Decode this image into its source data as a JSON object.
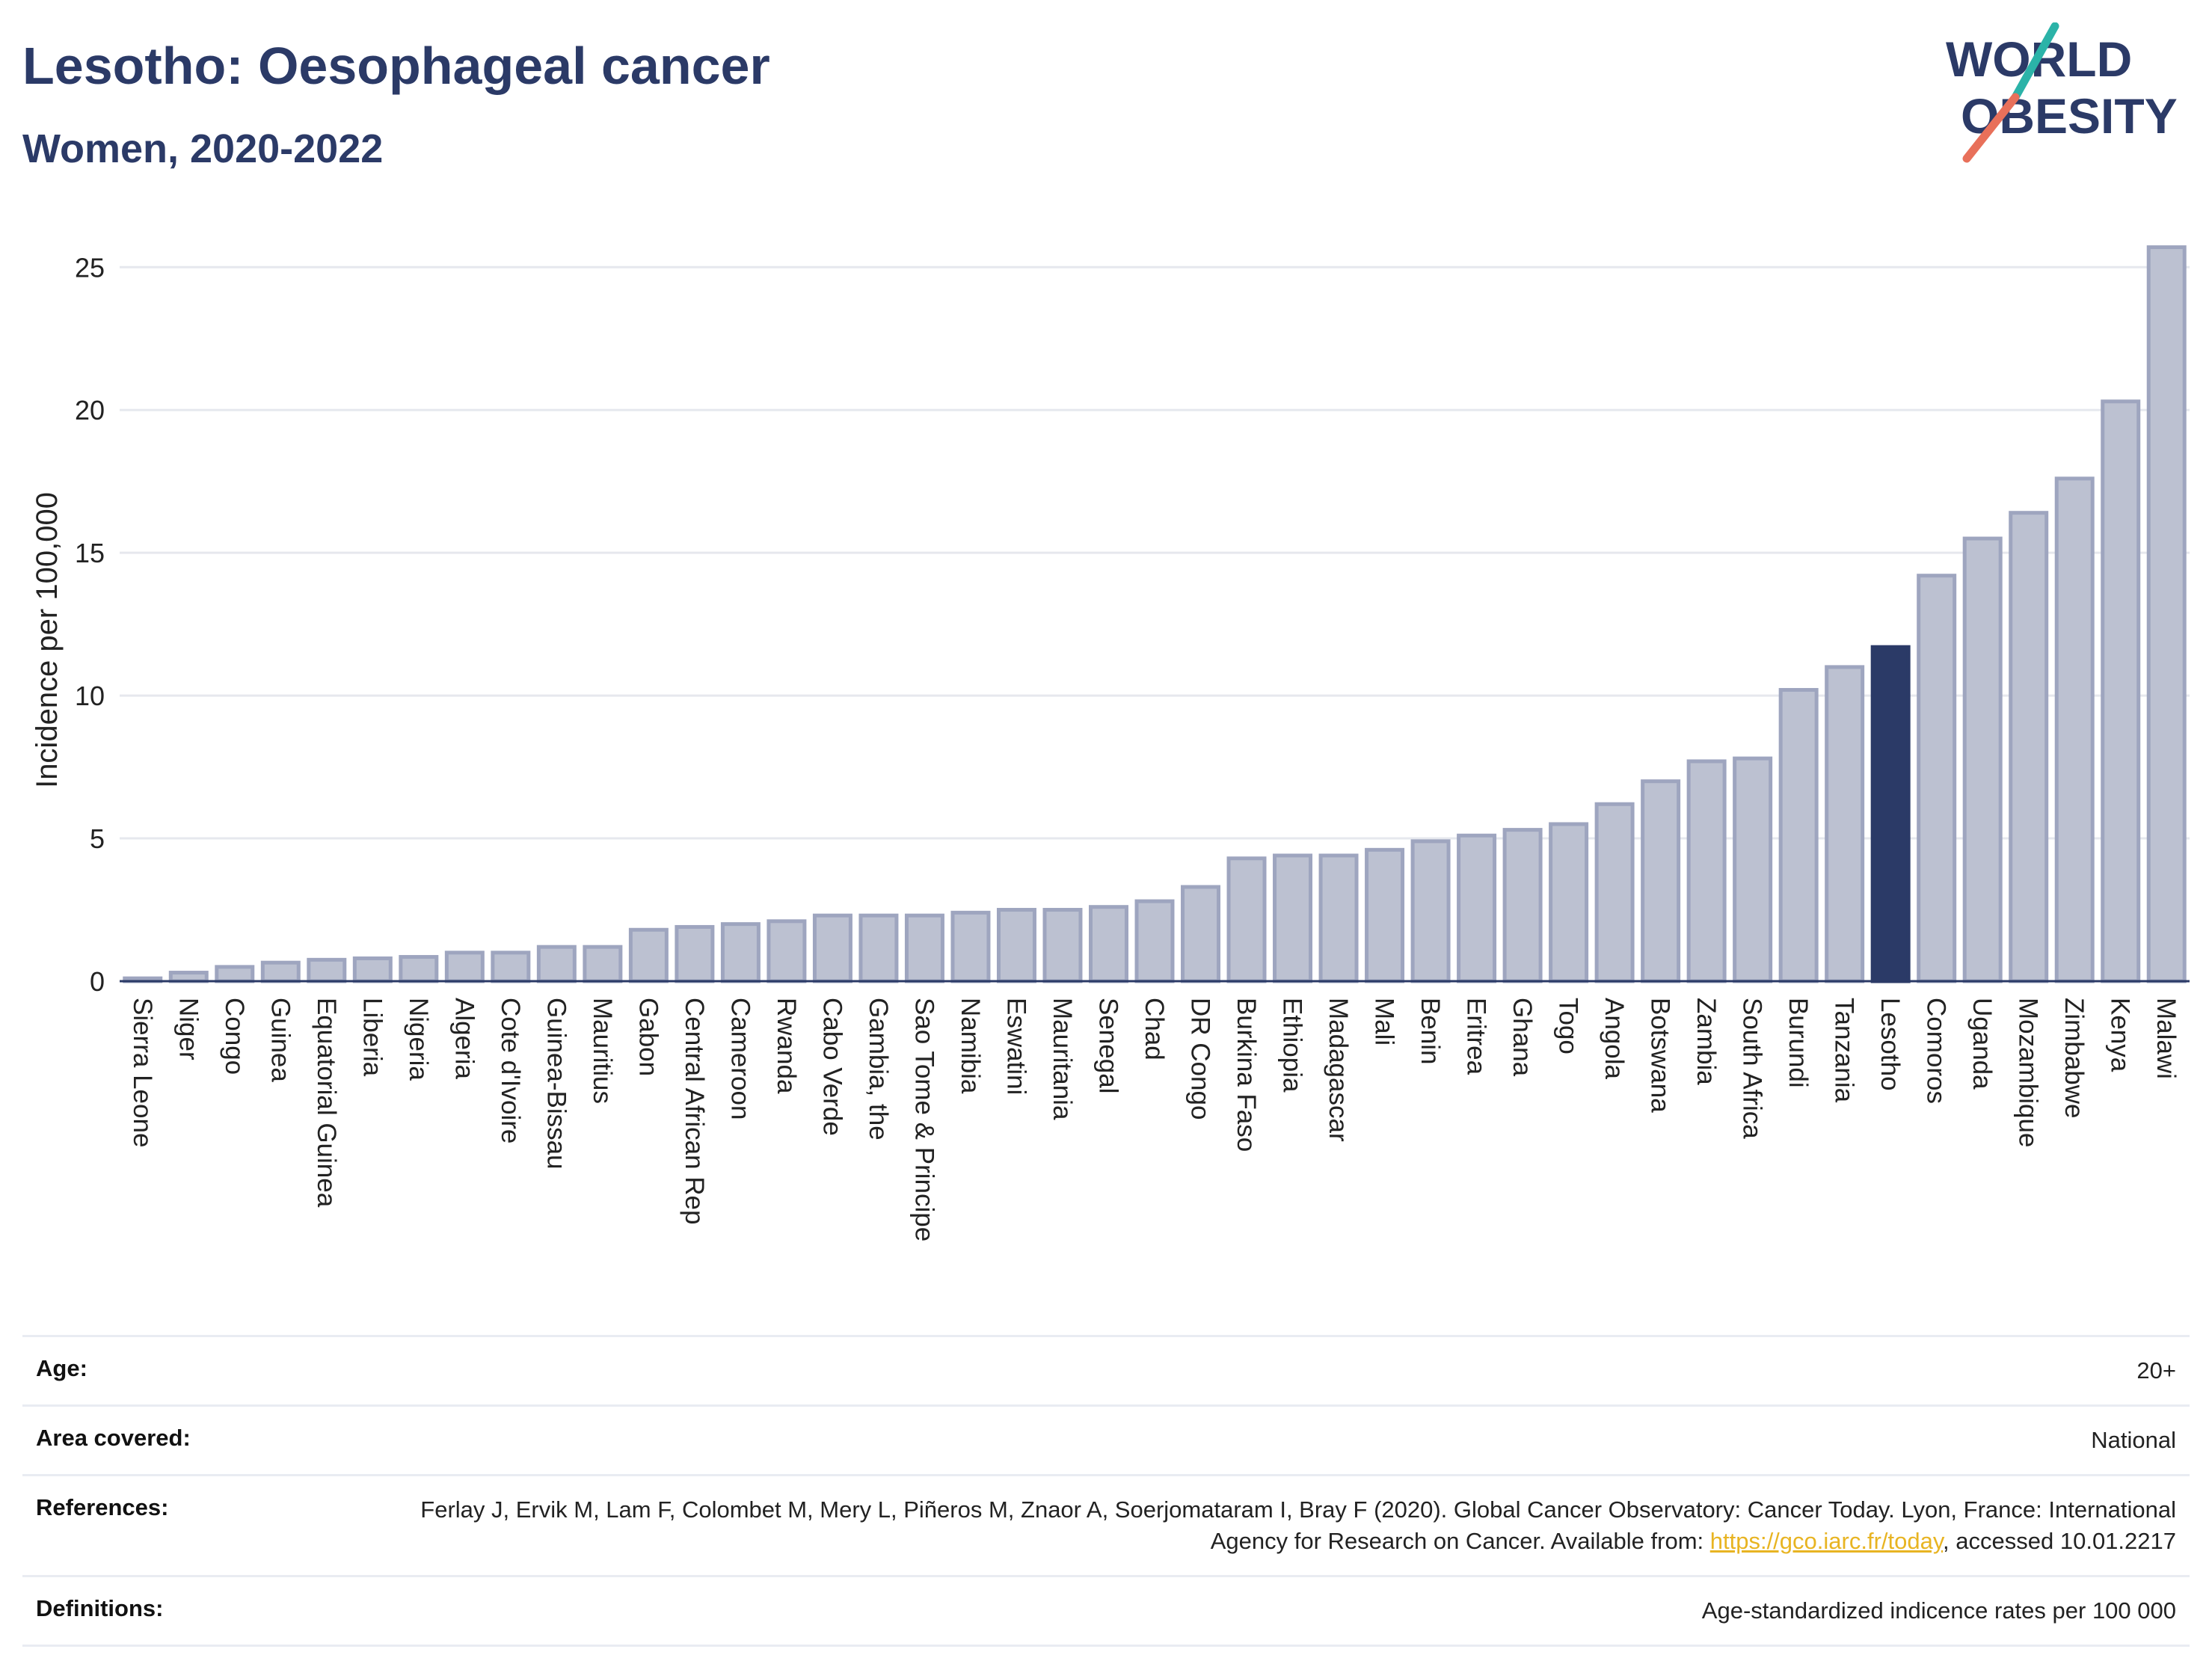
{
  "header": {
    "title": "Lesotho: Oesophageal cancer",
    "subtitle": "Women, 2020-2022"
  },
  "logo": {
    "line1": "WORLD",
    "line2": "OBESITY",
    "accent_teal": "#2bb3a8",
    "accent_red": "#e8705a",
    "text_color": "#2b3a67"
  },
  "chart_data": {
    "type": "bar",
    "ylabel": "Incidence per 100,000",
    "ylim": [
      0,
      26.5
    ],
    "yticks": [
      0,
      5,
      10,
      15,
      20,
      25
    ],
    "grid": true,
    "highlight": "Lesotho",
    "colors": {
      "bar": "#bcc1d1",
      "bar_edge": "#9ea5bf",
      "highlight": "#2b3a67"
    },
    "categories": [
      "Sierra Leone",
      "Niger",
      "Congo",
      "Guinea",
      "Equatorial Guinea",
      "Liberia",
      "Nigeria",
      "Algeria",
      "Cote d'Ivoire",
      "Guinea-Bissau",
      "Mauritius",
      "Gabon",
      "Central African Rep",
      "Cameroon",
      "Rwanda",
      "Cabo Verde",
      "Gambia, the",
      "Sao Tome & Principe",
      "Namibia",
      "Eswatini",
      "Mauritania",
      "Senegal",
      "Chad",
      "DR Congo",
      "Burkina Faso",
      "Ethiopia",
      "Madagascar",
      "Mali",
      "Benin",
      "Eritrea",
      "Ghana",
      "Togo",
      "Angola",
      "Botswana",
      "Zambia",
      "South Africa",
      "Burundi",
      "Tanzania",
      "Lesotho",
      "Comoros",
      "Uganda",
      "Mozambique",
      "Zimbabwe",
      "Kenya",
      "Malawi"
    ],
    "values": [
      0.1,
      0.3,
      0.5,
      0.65,
      0.75,
      0.8,
      0.85,
      1.0,
      1.0,
      1.2,
      1.2,
      1.8,
      1.9,
      2.0,
      2.1,
      2.3,
      2.3,
      2.3,
      2.4,
      2.5,
      2.5,
      2.6,
      2.8,
      3.3,
      4.3,
      4.4,
      4.4,
      4.6,
      4.9,
      5.1,
      5.3,
      5.5,
      6.2,
      7.0,
      7.7,
      7.8,
      10.2,
      11.0,
      11.7,
      14.2,
      15.5,
      16.4,
      17.6,
      20.3,
      25.7
    ]
  },
  "meta": [
    {
      "key": "Age:",
      "value": "20+"
    },
    {
      "key": "Area covered:",
      "value": "National"
    },
    {
      "key": "References:",
      "value_pre": "Ferlay J, Ervik M, Lam F, Colombet M, Mery L, Piñeros M, Znaor A, Soerjomataram I, Bray F (2020). Global Cancer Observatory: Cancer Today. Lyon, France: International Agency for Research on Cancer. Available from: ",
      "link": "https://gco.iarc.fr/today",
      "value_post": ", accessed 10.01.2217"
    },
    {
      "key": "Definitions:",
      "value": "Age-standardized indicence rates per 100 000"
    }
  ]
}
